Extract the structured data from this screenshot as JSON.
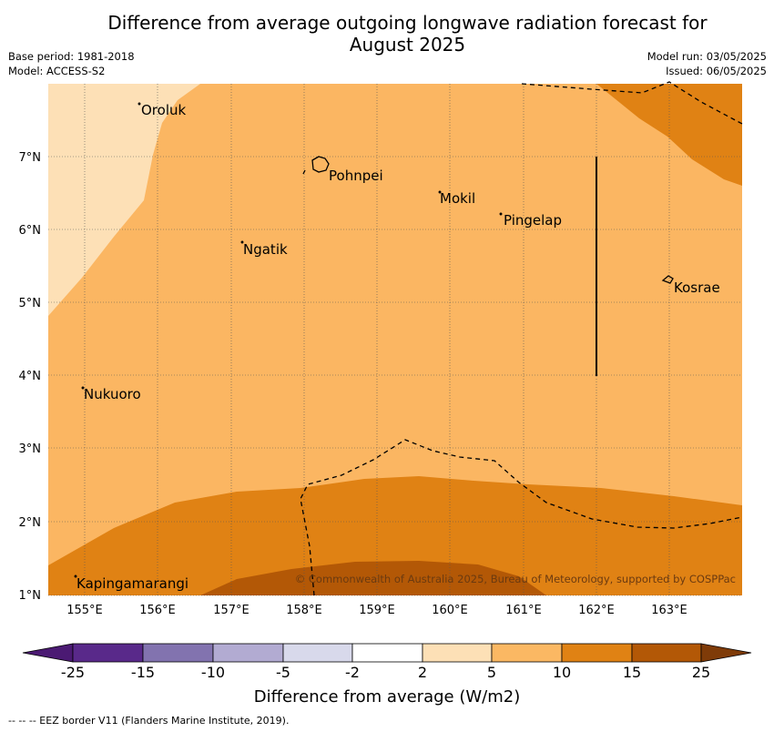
{
  "title_line1": "Difference from average outgoing longwave radiation forecast for",
  "title_line2": "August 2025",
  "meta_left": [
    "Base period: 1981-2018",
    "Model: ACCESS-S2"
  ],
  "meta_right": [
    "Model run: 03/05/2025",
    "Issued: 06/05/2025"
  ],
  "map": {
    "x_ticks": [
      "155°E",
      "156°E",
      "157°E",
      "158°E",
      "159°E",
      "160°E",
      "161°E",
      "162°E",
      "163°E"
    ],
    "y_ticks": [
      "7°N",
      "6°N",
      "5°N",
      "4°N",
      "3°N",
      "2°N",
      "1°N"
    ],
    "places": [
      "Oroluk",
      "Pohnpei",
      "Mokil",
      "Pingelap",
      "Ngatik",
      "Kosrae",
      "Nukuoro",
      "Kapingamarangi"
    ],
    "copyright": "© Commonwealth of Australia 2025, Bureau of Meteorology, supported by COSPPac"
  },
  "colorbar": {
    "tick_labels": [
      "-25",
      "-15",
      "-10",
      "-5",
      "-2",
      "2",
      "5",
      "10",
      "15",
      "25"
    ],
    "colors": [
      "#4b1a73",
      "#59298a",
      "#8273af",
      "#b2abd2",
      "#d8d9eb",
      "#ffffff",
      "#fde0b6",
      "#fbb863",
      "#e08214",
      "#b35806",
      "#7f3b08"
    ],
    "title": "Difference from average (W/m2)"
  },
  "footnote": "--  --  -- EEZ border V11 (Flanders Marine Institute, 2019)."
}
